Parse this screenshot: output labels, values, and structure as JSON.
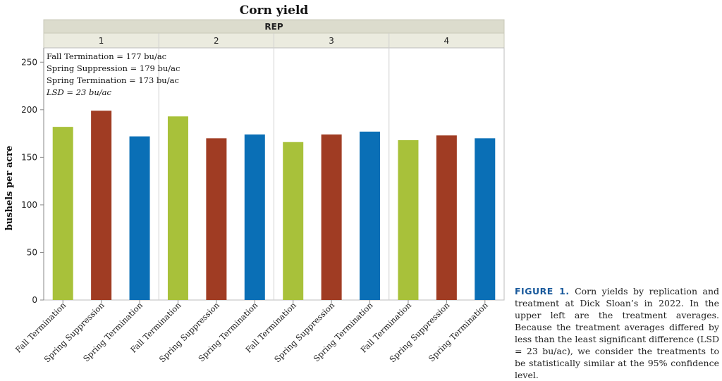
{
  "chart_data": {
    "type": "bar",
    "title": "Corn yield",
    "panel_header": "REP",
    "panels": [
      {
        "label": "1",
        "categories": [
          "Fall Termination",
          "Spring Suppression",
          "Spring Termination"
        ],
        "values": [
          182,
          199,
          172
        ]
      },
      {
        "label": "2",
        "categories": [
          "Fall Termination",
          "Spring Suppression",
          "Spring Termination"
        ],
        "values": [
          193,
          170,
          174
        ]
      },
      {
        "label": "3",
        "categories": [
          "Fall Termination",
          "Spring Suppression",
          "Spring Termination"
        ],
        "values": [
          166,
          174,
          177
        ]
      },
      {
        "label": "4",
        "categories": [
          "Fall Termination",
          "Spring Suppression",
          "Spring Termination"
        ],
        "values": [
          168,
          173,
          170
        ]
      }
    ],
    "ylabel": "bushels per acre",
    "ylim": [
      0,
      265
    ],
    "yticks": [
      0,
      50,
      100,
      150,
      200,
      250
    ],
    "colors": {
      "Fall Termination": "#a8c13a",
      "Spring Suppression": "#a03c23",
      "Spring Termination": "#0a6fb6"
    },
    "annotations": [
      "Fall Termination = 177 bu/ac",
      "Spring Suppression = 179 bu/ac",
      "Spring Termination = 173 bu/ac",
      "LSD = 23 bu/ac"
    ]
  },
  "caption": {
    "label": "FIGURE 1.",
    "text": "Corn yields by replication and treatment at Dick Sloan’s in 2022. In the upper left are the treatment averages. Because the treatment averages differed by less than the least significant difference (LSD = 23 bu/ac), we consider the treatments to be statistically similar at the 95% confidence level."
  }
}
